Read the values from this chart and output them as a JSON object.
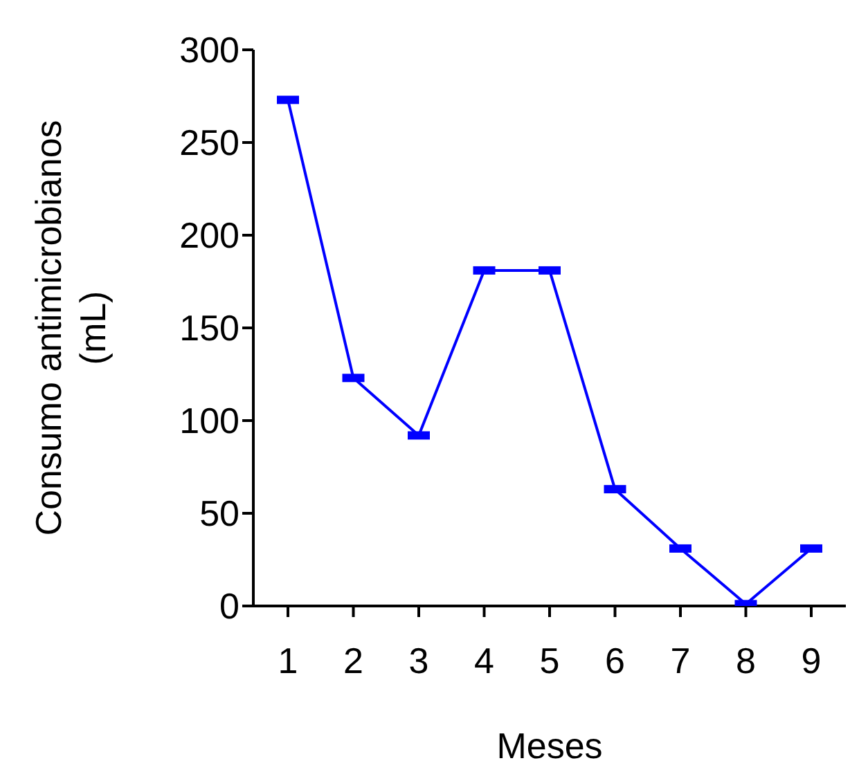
{
  "chart_data": {
    "type": "line",
    "xlabel": "Meses",
    "ylabel": "Consumo antimicrobianos (mL)",
    "categories": [
      "1",
      "2",
      "3",
      "4",
      "5",
      "6",
      "7",
      "8",
      "9"
    ],
    "series": [
      {
        "color": "#0000ff",
        "values": [
          273,
          123,
          92,
          181,
          181,
          63,
          31,
          1,
          31
        ]
      }
    ],
    "ylim": [
      0,
      300
    ],
    "yticks": [
      0,
      50,
      100,
      150,
      200,
      250,
      300
    ],
    "grid": false,
    "legend": false,
    "marker": "square",
    "line_style": "solid"
  }
}
